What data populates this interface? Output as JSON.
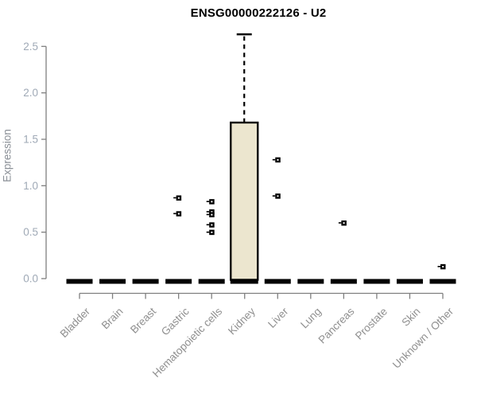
{
  "chart_data": {
    "type": "box",
    "title": "ENSG00000222126 - U2",
    "ylabel": "Expression",
    "xlabel": "",
    "ylim": [
      0,
      2.5
    ],
    "ytick_labels": [
      "0.0",
      "0.5",
      "1.0",
      "1.5",
      "2.0",
      "2.5"
    ],
    "ytick_values": [
      0,
      0.5,
      1.0,
      1.5,
      2.0,
      2.5
    ],
    "grid": false,
    "legend": false,
    "categories": [
      "Bladder",
      "Brain",
      "Breast",
      "Gastric",
      "Hematopoietic cells",
      "Kidney",
      "Liver",
      "Lung",
      "Pancreas",
      "Prostate",
      "Skin",
      "Unknown / Other"
    ],
    "boxes": [
      {
        "category": "Bladder",
        "q1": 0,
        "median": 0,
        "q3": 0,
        "whisker_low": 0,
        "whisker_high": 0,
        "outliers": []
      },
      {
        "category": "Brain",
        "q1": 0,
        "median": 0,
        "q3": 0,
        "whisker_low": 0,
        "whisker_high": 0,
        "outliers": []
      },
      {
        "category": "Breast",
        "q1": 0,
        "median": 0,
        "q3": 0,
        "whisker_low": 0,
        "whisker_high": 0,
        "outliers": []
      },
      {
        "category": "Gastric",
        "q1": 0,
        "median": 0,
        "q3": 0,
        "whisker_low": 0,
        "whisker_high": 0,
        "outliers": [
          0.87,
          0.7
        ]
      },
      {
        "category": "Hematopoietic cells",
        "q1": 0,
        "median": 0,
        "q3": 0,
        "whisker_low": 0,
        "whisker_high": 0,
        "outliers": [
          0.83,
          0.72,
          0.69,
          0.58,
          0.5
        ]
      },
      {
        "category": "Kidney",
        "q1": 0,
        "median": 0,
        "q3": 1.68,
        "whisker_low": 0,
        "whisker_high": 2.63,
        "outliers": []
      },
      {
        "category": "Liver",
        "q1": 0,
        "median": 0,
        "q3": 0,
        "whisker_low": 0,
        "whisker_high": 0,
        "outliers": [
          1.28,
          0.89
        ]
      },
      {
        "category": "Lung",
        "q1": 0,
        "median": 0,
        "q3": 0,
        "whisker_low": 0,
        "whisker_high": 0,
        "outliers": []
      },
      {
        "category": "Pancreas",
        "q1": 0,
        "median": 0,
        "q3": 0,
        "whisker_low": 0,
        "whisker_high": 0,
        "outliers": [
          0.6
        ]
      },
      {
        "category": "Prostate",
        "q1": 0,
        "median": 0,
        "q3": 0,
        "whisker_low": 0,
        "whisker_high": 0,
        "outliers": []
      },
      {
        "category": "Skin",
        "q1": 0,
        "median": 0,
        "q3": 0,
        "whisker_low": 0,
        "whisker_high": 0,
        "outliers": []
      },
      {
        "category": "Unknown / Other",
        "q1": 0,
        "median": 0,
        "q3": 0,
        "whisker_low": 0,
        "whisker_high": 0,
        "outliers": [
          0.13
        ]
      }
    ],
    "colors": {
      "title": "#000000",
      "axis_line": "#7f7f7f",
      "y_tick_label": "#9fa9b6",
      "x_tick_label": "#8f8f8f",
      "y_axis_title": "#8a8f96",
      "box_fill": "#ece6cf",
      "box_stroke": "#000000",
      "collapsed_bar": "#000000",
      "outlier": "#000000",
      "background": "#ffffff"
    }
  }
}
